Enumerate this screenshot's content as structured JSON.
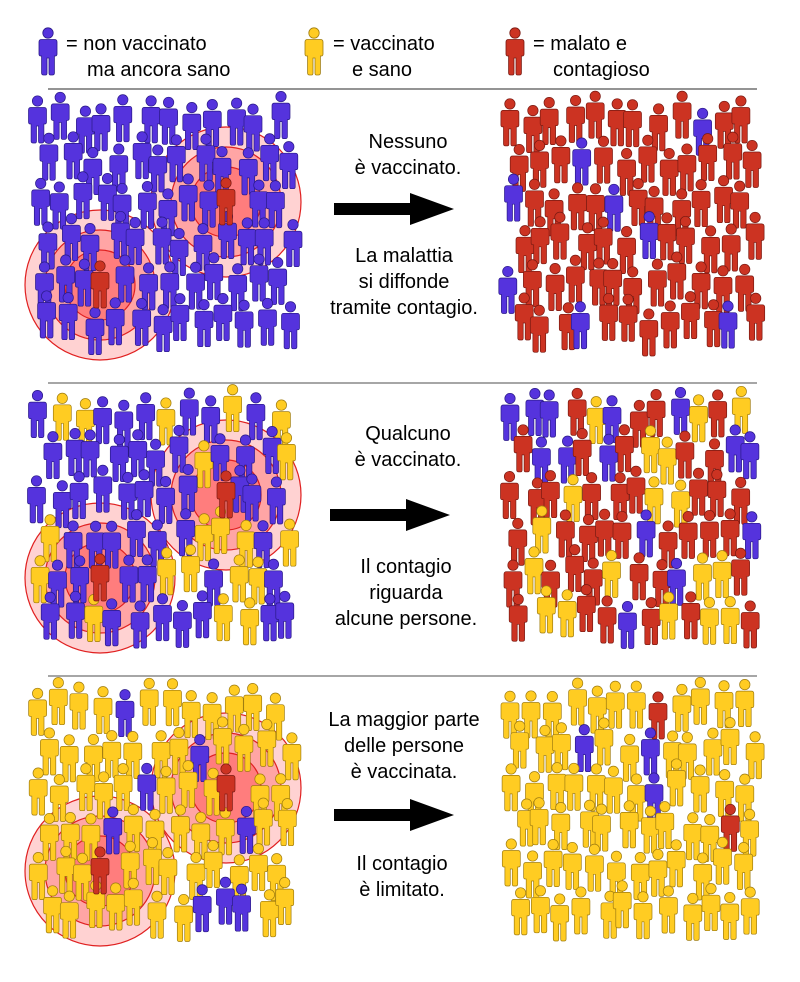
{
  "legend": {
    "items": [
      {
        "icon": "person-icon",
        "color": "#5533dd",
        "line1": "= non vaccinato",
        "line2": "ma ancora sano"
      },
      {
        "icon": "person-icon",
        "color": "#ffcc22",
        "line1": "= vaccinato",
        "line2": "e sano"
      },
      {
        "icon": "person-icon",
        "color": "#cc3322",
        "line1": "= malato e",
        "line2": "contagioso"
      }
    ]
  },
  "colors": {
    "unvaccinated": "#5533dd",
    "vaccinated": "#ffcc22",
    "sick": "#cc3322",
    "contagion_ring": "#ff3333",
    "arrow": "#000000"
  },
  "panels": [
    {
      "top_lines": [
        "Nessuno",
        "è vaccinato."
      ],
      "bottom_lines": [
        "La malattia",
        "si diffonde",
        "tramite contagio."
      ]
    },
    {
      "top_lines": [
        "Qualcuno",
        "è vaccinato."
      ],
      "bottom_lines": [
        "Il contagio",
        "riguarda",
        "alcune persone."
      ]
    },
    {
      "top_lines": [
        "La maggior parte",
        "delle persone",
        "è vaccinata."
      ],
      "bottom_lines": [
        "Il contagio",
        "è limitato."
      ]
    }
  ]
}
